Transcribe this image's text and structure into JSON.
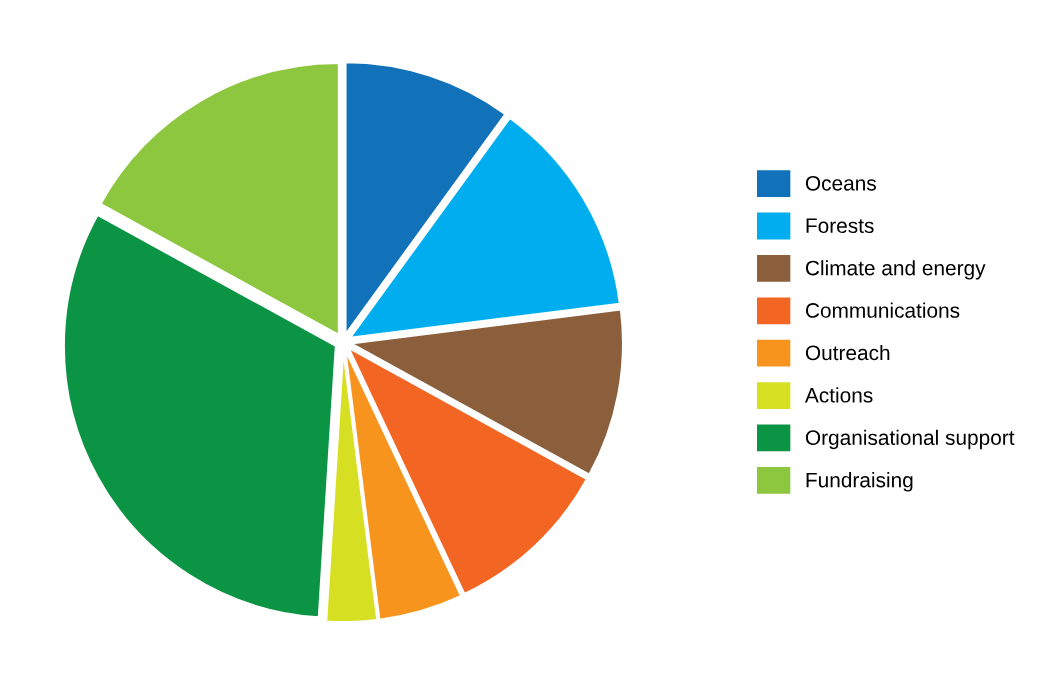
{
  "chart_data": {
    "type": "pie",
    "categories": [
      "Oceans",
      "Forests",
      "Climate and energy",
      "Communications",
      "Outreach",
      "Actions",
      "Organisational support",
      "Fundraising"
    ],
    "values": [
      10,
      13,
      10,
      10,
      5,
      3,
      32,
      17
    ],
    "colors": [
      "#1172ba",
      "#00aeef",
      "#8b5e3c",
      "#f26522",
      "#f7941d",
      "#d7df23",
      "#0b9444",
      "#8dc63f"
    ],
    "legend": "right"
  }
}
